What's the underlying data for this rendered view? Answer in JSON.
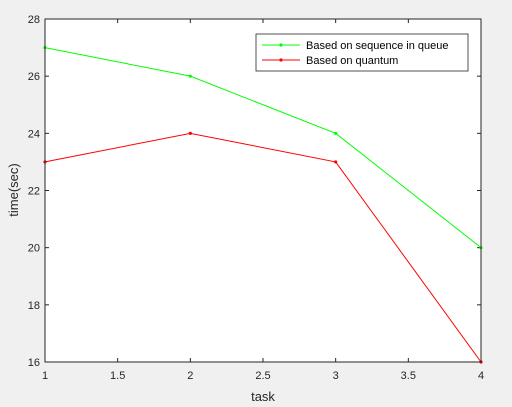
{
  "chart_data": {
    "type": "line",
    "title": "",
    "xlabel": "task",
    "ylabel": "time(sec)",
    "xlim": [
      1,
      4
    ],
    "ylim": [
      16,
      28
    ],
    "xticks": [
      1,
      1.5,
      2,
      2.5,
      3,
      3.5,
      4
    ],
    "yticks": [
      16,
      18,
      20,
      22,
      24,
      26,
      28
    ],
    "grid": false,
    "legend_position": "top-right",
    "x": [
      1,
      2,
      3,
      4
    ],
    "series": [
      {
        "name": "Based on sequence in queue",
        "values": [
          27,
          26,
          24,
          20
        ],
        "color": "#00ff00"
      },
      {
        "name": "Based on quantum",
        "values": [
          23,
          24,
          23,
          16
        ],
        "color": "#ff0000"
      }
    ]
  }
}
